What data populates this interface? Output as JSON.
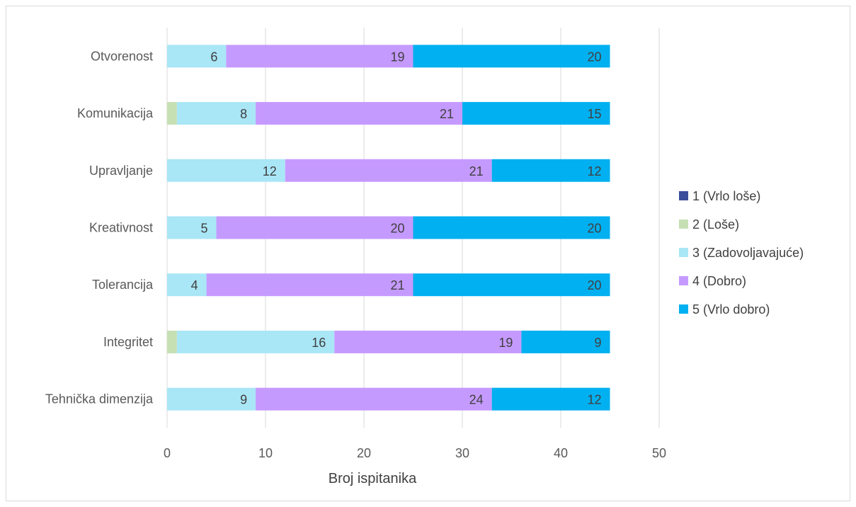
{
  "chart_data": {
    "type": "bar",
    "orientation": "horizontal",
    "stacked": true,
    "categories": [
      "Otvorenost",
      "Komunikacija",
      "Upravljanje",
      "Kreativnost",
      "Tolerancija",
      "Integritet",
      "Tehnička dimenzija"
    ],
    "series": [
      {
        "name": "1 (Vrlo loše)",
        "color": "#3b4e9a",
        "values": [
          0,
          0,
          0,
          0,
          0,
          0,
          0
        ]
      },
      {
        "name": "2 (Loše)",
        "color": "#c6e0b4",
        "values": [
          0,
          1,
          0,
          0,
          0,
          1,
          0
        ]
      },
      {
        "name": "3 (Zadovoljavajuće)",
        "color": "#a9e6f6",
        "values": [
          6,
          8,
          12,
          5,
          4,
          16,
          9
        ]
      },
      {
        "name": "4 (Dobro)",
        "color": "#c59aff",
        "values": [
          19,
          21,
          21,
          20,
          21,
          19,
          24
        ]
      },
      {
        "name": "5 (Vrlo dobro)",
        "color": "#00b0f0",
        "values": [
          20,
          15,
          12,
          20,
          20,
          9,
          12
        ]
      }
    ],
    "data_labels_min": 2,
    "xlim": [
      0,
      50
    ],
    "xticks": [
      0,
      10,
      20,
      30,
      40,
      50
    ],
    "xlabel": "Broj ispitanika",
    "ylabel": "",
    "grid": "vertical",
    "legend": "right"
  }
}
